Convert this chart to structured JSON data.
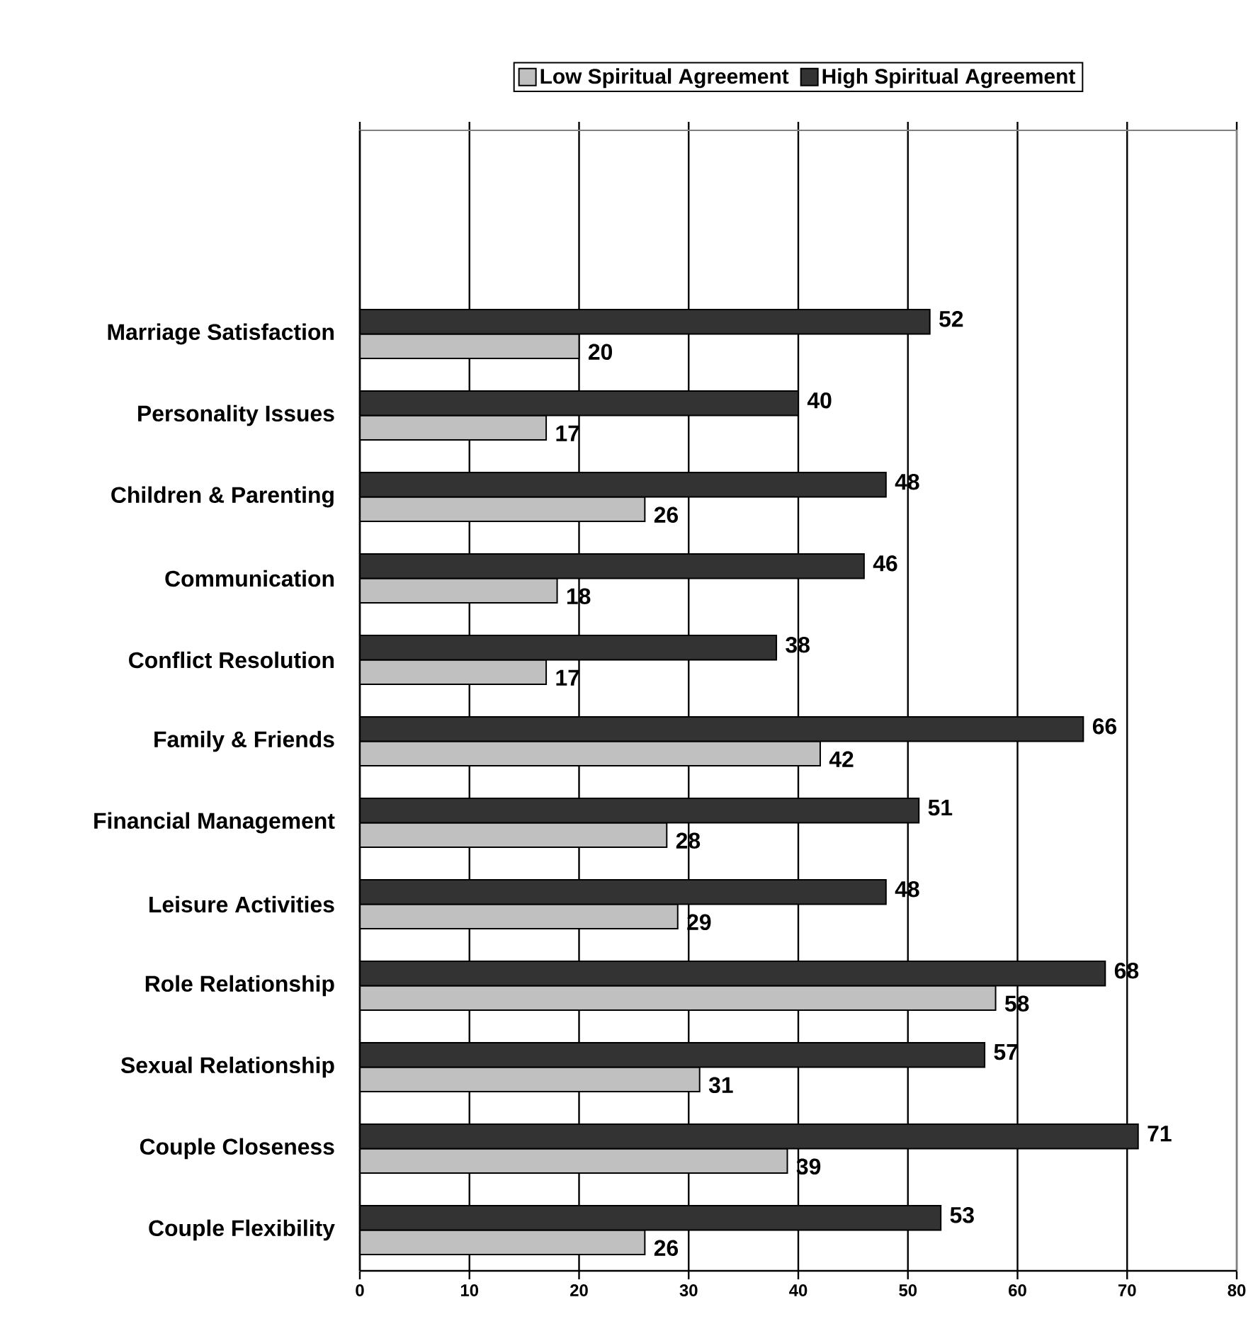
{
  "chart_data": {
    "type": "bar",
    "orientation": "horizontal",
    "categories": [
      null,
      null,
      "Marriage Satisfaction",
      "Personality Issues",
      "Children & Parenting",
      "Communication",
      "Conflict Resolution",
      "Family & Friends",
      "Financial Management",
      "Leisure Activities",
      "Role Relationship",
      "Sexual Relationship",
      "Couple Closeness",
      "Couple Flexibility"
    ],
    "series": [
      {
        "name": "Low Spiritual Agreement",
        "color": "#c0c0c0",
        "values": [
          null,
          null,
          20,
          17,
          26,
          18,
          17,
          42,
          28,
          29,
          58,
          31,
          39,
          26
        ]
      },
      {
        "name": "High Spiritual Agreement",
        "color": "#333333",
        "values": [
          null,
          null,
          52,
          40,
          48,
          46,
          38,
          66,
          51,
          48,
          68,
          57,
          71,
          53
        ]
      }
    ],
    "xlim": [
      0,
      80
    ],
    "xticks": [
      0,
      10,
      20,
      30,
      40,
      50,
      60,
      70,
      80
    ],
    "grid": "x",
    "legend": "top",
    "data_labels": true
  }
}
